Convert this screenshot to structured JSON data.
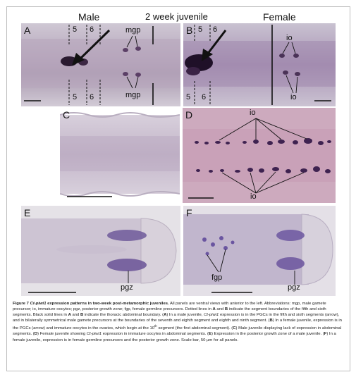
{
  "headers": {
    "male": "Male",
    "juvenile": "2 week juvenile",
    "female": "Female"
  },
  "panels": {
    "A": {
      "letter": "A",
      "seg_top_5": "5",
      "seg_top_6": "6",
      "seg_bot_5": "5",
      "seg_bot_6": "6",
      "mgp_top": "mgp",
      "mgp_bot": "mgp"
    },
    "B": {
      "letter": "B",
      "seg_top_5": "5",
      "seg_top_6": "6",
      "seg_bot_5": "5",
      "seg_bot_6": "6",
      "io_top": "io",
      "io_bot": "io"
    },
    "C": {
      "letter": "C"
    },
    "D": {
      "letter": "D",
      "io_top": "io",
      "io_bot": "io"
    },
    "E": {
      "letter": "E",
      "pgz": "pgz"
    },
    "F": {
      "letter": "F",
      "fgp": "fgp",
      "pgz": "pgz"
    }
  },
  "caption": {
    "fig_label": "Figure 7",
    "gene": "Ct-piwi1",
    "title_rest": " expression patterns in two-week post-metamorphic juveniles.",
    "s1": " All panels are ventral views with anterior to the left. Abbreviations: mgp, male gamete precursor; io, immature oocytes; pgz, posterior growth zone; fgp, female germline precursors. Dotted lines in ",
    "A": "A",
    "and1": " and ",
    "B": "B",
    "s2": " indicate the segment boundaries of the fifth and sixth segments. Black solid lines in ",
    "s3": " indicate the thoracic abdominal boundary. (",
    "s4": ") In a male juvenile, ",
    "s5": " expression is in the PGCs in the fifth and sixth segments (arrow), and in bilaterally symmetrical male gamete precursors at the boundaries of the seventh and eighth segment and eighth and ninth segment. (",
    "s6": ") In a female juvenile, expression is in the PGCs (arrow) and immature oocytes in the ovaries, which begin at the 10",
    "th": "th",
    "s7": " segment (the first abdominal segment). (",
    "C": "C",
    "s8": ") Male juvenile displaying lack of expression in abdominal segments. (",
    "D": "D",
    "s9": ") Female juvenile showing ",
    "s10": " expression in immature oocytes in abdominal segments. (",
    "E": "E",
    "s11": ") Expression in the posterior growth zone of a male juvenile. (",
    "F": "F",
    "s12": ") In a female juvenile, expression is in female germline precursors and the posterior growth zone. Scale bar, 50 µm for all panels."
  }
}
